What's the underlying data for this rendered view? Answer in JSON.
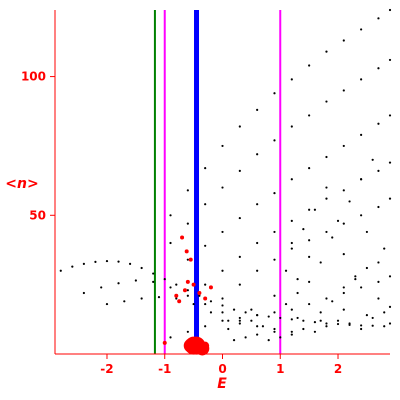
{
  "chart_data": {
    "type": "scatter",
    "xlabel": "E",
    "ylabel": "<n>",
    "xlim": [
      -2.9,
      2.9
    ],
    "ylim": [
      0,
      124
    ],
    "xticks": [
      -2,
      -1,
      0,
      1,
      2
    ],
    "xtick_labels": [
      "-2",
      "-1",
      "0",
      "1",
      "2"
    ],
    "yticks": [
      50,
      100
    ],
    "ytick_labels": [
      "50",
      "100"
    ],
    "grid": false,
    "colors": {
      "axis": "#ff0000",
      "points": "#000000",
      "highlight": "#ff0000",
      "line_blue": "#0000ff",
      "line_green": "#008000",
      "line_magenta": "#ff00ff"
    },
    "vertical_lines": [
      {
        "x": -1.17,
        "color": "#008000",
        "width": 2
      },
      {
        "x": -1.0,
        "color": "#ff00ff",
        "width": 2
      },
      {
        "x": -0.45,
        "color": "#0000ff",
        "width": 5
      },
      {
        "x": 1.0,
        "color": "#ff00ff",
        "width": 2
      }
    ],
    "black_series": [
      {
        "x": [
          -3.0,
          -2.8,
          -2.6,
          -2.4,
          -2.2,
          -2.0,
          -1.8,
          -1.6,
          -1.4,
          -1.2,
          -1.0,
          -0.8,
          -0.6,
          -0.4,
          -0.2,
          0.0,
          0.2,
          0.4,
          0.6,
          0.8,
          1.0,
          1.2,
          1.4,
          1.6,
          1.8,
          2.0,
          2.2,
          2.4,
          2.6,
          2.8
        ],
        "y": [
          28,
          30,
          31.5,
          32.5,
          33.2,
          33.5,
          33.3,
          32.5,
          31,
          29,
          27,
          25,
          23,
          21,
          19,
          17.5,
          16,
          15,
          14,
          13.5,
          13,
          12.5,
          12,
          11.5,
          11,
          10.8,
          10.5,
          10.3,
          10.2,
          10
        ]
      },
      {
        "x": [
          -2.4,
          -2.1,
          -1.8,
          -1.5,
          -1.2,
          -0.9,
          -0.6,
          -0.3,
          0.0,
          0.3,
          0.6,
          0.9,
          1.2
        ],
        "y": [
          22,
          24,
          25.5,
          26.5,
          26,
          24,
          21,
          18,
          15,
          12,
          10,
          9,
          8
        ]
      },
      {
        "x": [
          -2.0,
          -1.7,
          -1.4,
          -1.1,
          -0.8,
          -0.5,
          -0.2,
          0.1
        ],
        "y": [
          18,
          19,
          20,
          20.5,
          20,
          18,
          15,
          12
        ]
      },
      {
        "x": [
          -0.9,
          -0.6,
          -0.3,
          0.0,
          0.3,
          0.6,
          0.9,
          1.2,
          1.5,
          1.8,
          2.1,
          2.4,
          2.7,
          2.9
        ],
        "y": [
          50,
          59,
          67,
          75,
          82,
          88,
          94,
          99,
          104,
          109,
          113,
          117,
          121,
          124
        ]
      },
      {
        "x": [
          -0.9,
          -0.6,
          -0.3,
          0.0,
          0.3,
          0.6,
          0.9,
          1.2,
          1.5,
          1.8,
          2.1,
          2.4,
          2.7,
          2.9
        ],
        "y": [
          40,
          47,
          54,
          60,
          66,
          72,
          77,
          82,
          86,
          91,
          95,
          99,
          103,
          106
        ]
      },
      {
        "x": [
          -0.6,
          -0.3,
          0.0,
          0.3,
          0.6,
          0.9,
          1.2,
          1.5,
          1.8,
          2.1,
          2.4,
          2.7,
          2.9
        ],
        "y": [
          34,
          39,
          44,
          49,
          54,
          58,
          63,
          67,
          71,
          75,
          79,
          83,
          86
        ]
      },
      {
        "x": [
          -0.3,
          0.0,
          0.3,
          0.6,
          0.9,
          1.2,
          1.5,
          1.8,
          2.1,
          2.4,
          2.7,
          2.9
        ],
        "y": [
          25,
          30,
          35,
          40,
          44,
          48,
          52,
          56,
          59,
          63,
          66,
          69
        ]
      },
      {
        "x": [
          0.0,
          0.3,
          0.6,
          0.9,
          1.2,
          1.5,
          1.8,
          2.1,
          2.4,
          2.7,
          2.9
        ],
        "y": [
          20,
          25,
          30,
          34,
          38,
          41,
          44,
          47,
          50,
          53,
          56
        ]
      },
      {
        "x": [
          -0.9,
          -0.6,
          -0.3,
          0.0,
          0.3,
          0.6,
          0.9,
          1.2,
          1.5,
          1.8,
          2.1,
          2.4,
          2.7,
          2.9
        ],
        "y": [
          6,
          8,
          10,
          12,
          13,
          14,
          15,
          16,
          18,
          20,
          22,
          24,
          26,
          28
        ]
      }
    ],
    "black_scatter": {
      "x": [
        0.1,
        0.3,
        0.5,
        0.7,
        0.9,
        1.1,
        1.3,
        1.5,
        1.7,
        1.9,
        2.1,
        2.3,
        2.5,
        2.7,
        2.9,
        1.2,
        1.4,
        1.6,
        1.8,
        2.0,
        2.2,
        2.4,
        2.6,
        2.8,
        1.1,
        1.5,
        1.9,
        2.3,
        2.7,
        1.3,
        1.7,
        2.1,
        2.5,
        2.9,
        0.2,
        0.4,
        0.6,
        0.8,
        1.0,
        1.2,
        1.4,
        1.6,
        1.8,
        2.0,
        2.2,
        2.4,
        2.6,
        2.8,
        0.5,
        0.9,
        1.3,
        1.7,
        2.1,
        2.5
      ],
      "y": [
        9,
        11,
        12,
        10,
        8,
        18,
        22,
        26,
        15,
        19,
        24,
        28,
        31,
        20,
        17,
        40,
        45,
        52,
        60,
        48,
        55,
        63,
        70,
        38,
        30,
        35,
        42,
        27,
        33,
        13,
        12,
        16,
        14,
        11,
        5,
        6,
        7,
        5,
        6,
        7,
        9,
        8,
        10,
        12,
        11,
        9,
        13,
        15,
        16,
        21,
        27,
        33,
        36,
        44
      ]
    },
    "red_points": {
      "x": [
        -0.7,
        -0.62,
        -0.55,
        -0.6,
        -0.5,
        -0.3,
        -0.4,
        -0.2,
        -0.75,
        -0.8,
        -0.65,
        -1.0,
        -0.5,
        -0.45,
        -0.35,
        -0.55,
        -0.4,
        -0.3
      ],
      "y": [
        42,
        37,
        34,
        26,
        25,
        20,
        22,
        24,
        19,
        21,
        23,
        4,
        3,
        3,
        2,
        3,
        4,
        3
      ],
      "r": [
        2,
        2,
        2,
        2,
        2,
        2,
        2,
        2,
        2,
        2,
        2,
        2,
        9,
        9,
        7,
        7,
        3,
        4
      ]
    }
  }
}
